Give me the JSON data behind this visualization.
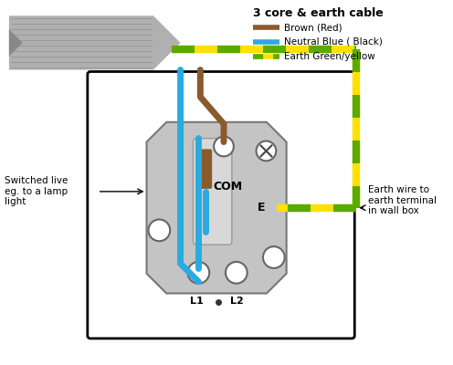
{
  "title": "3 core & earth cable",
  "legend_items": [
    {
      "label": "Brown (Red)",
      "color": "#8B5A2B"
    },
    {
      "label": "Neutral Blue ( Black)",
      "color": "#29ABE2"
    },
    {
      "label": "Earth Green/yellow",
      "color": "#5AAA00"
    }
  ],
  "left_label": "Switched live\neg. to a lamp\nlight",
  "right_label": "Earth wire to\nearth terminal\nin wall box",
  "bg_color": "#FFFFFF",
  "brown_color": "#8B5A2B",
  "blue_color": "#29ABE2",
  "earth_green": "#5AAA00",
  "earth_yellow": "#FFE000",
  "box_facecolor": "#FFFFFF",
  "switch_facecolor": "#C4C4C4",
  "lamp_color": "#AAAAAA"
}
